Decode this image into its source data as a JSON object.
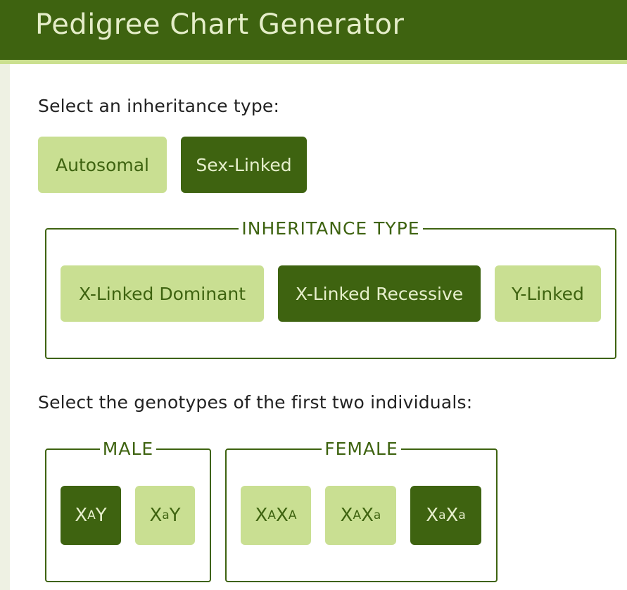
{
  "header": {
    "title": "Pedigree Chart Generator"
  },
  "inheritance_prompt": "Select an inheritance type:",
  "inheritance_buttons": {
    "autosomal": "Autosomal",
    "sex_linked": "Sex-Linked"
  },
  "inheritance_type": {
    "legend": "INHERITANCE TYPE",
    "x_dominant": "X-Linked Dominant",
    "x_recessive": "X-Linked Recessive",
    "y_linked": "Y-Linked"
  },
  "genotype_prompt": "Select the genotypes of the first two individuals:",
  "male": {
    "legend": "MALE",
    "options": [
      {
        "base": "X",
        "sup": "A",
        "rest": "Y"
      },
      {
        "base": "X",
        "sup": "a",
        "rest": "Y"
      }
    ]
  },
  "female": {
    "legend": "FEMALE",
    "options": [
      {
        "b1": "X",
        "s1": "A",
        "b2": "X",
        "s2": "A"
      },
      {
        "b1": "X",
        "s1": "A",
        "b2": "X",
        "s2": "a"
      },
      {
        "b1": "X",
        "s1": "a",
        "b2": "X",
        "s2": "a"
      }
    ]
  },
  "colors": {
    "dark_green": "#3e6310",
    "light_green": "#c9df92",
    "header_text": "#e4edc8"
  }
}
